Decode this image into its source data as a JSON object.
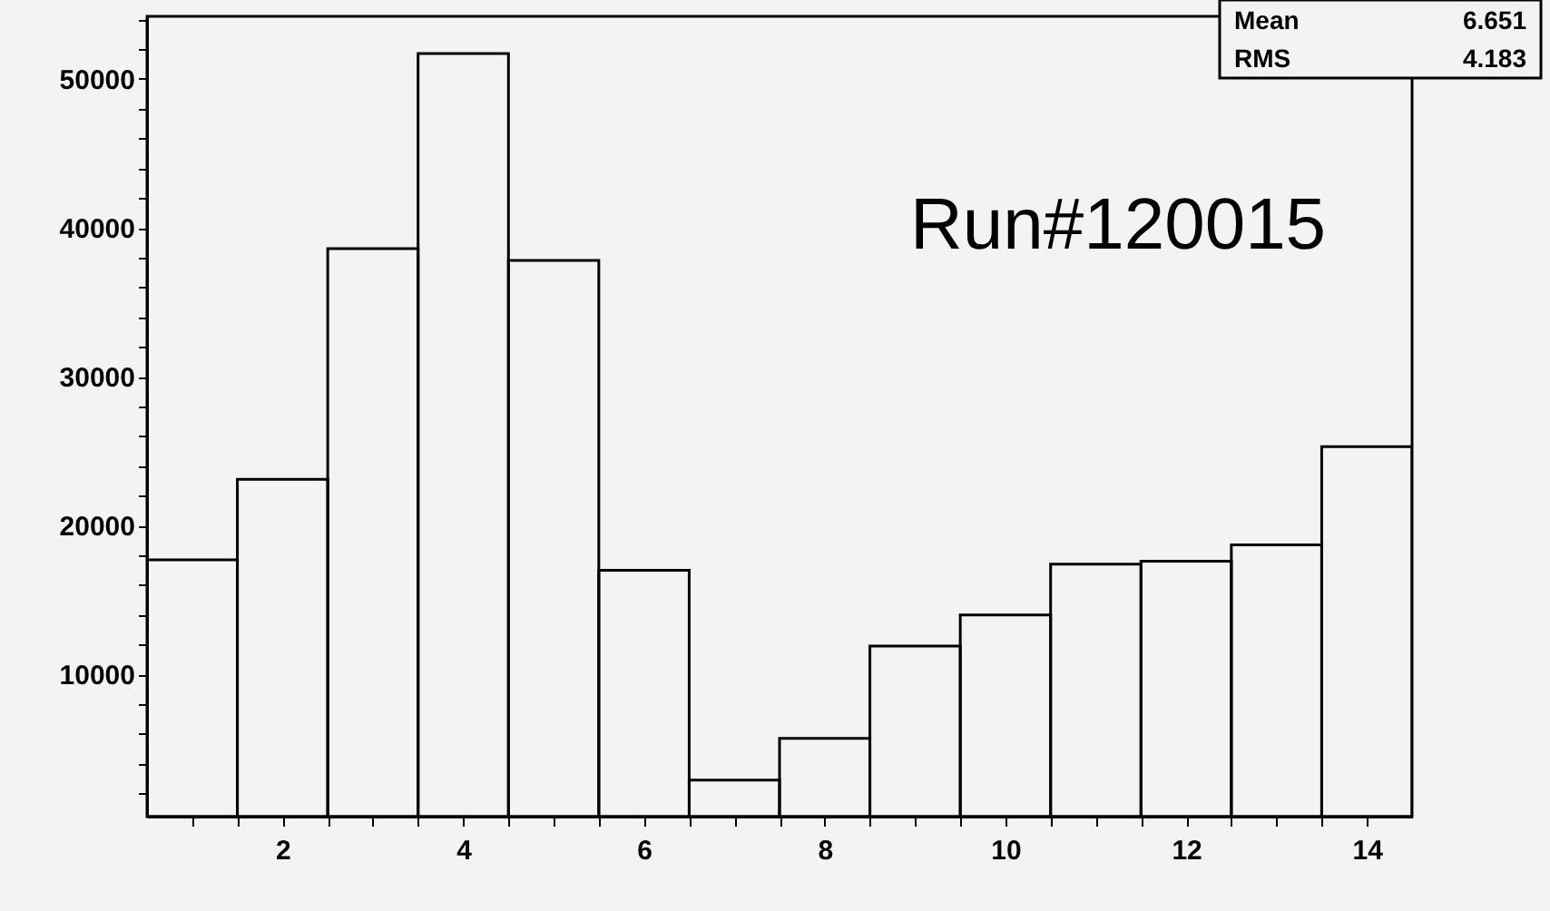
{
  "chart_data": {
    "type": "histogram",
    "bins": [
      0.5,
      1.5,
      2.5,
      3.5,
      4.5,
      5.5,
      6.5,
      7.5,
      8.5,
      9.5,
      10.5,
      11.5,
      12.5,
      13.5,
      14.5
    ],
    "values": [
      17700,
      23100,
      38600,
      51700,
      37800,
      17000,
      2900,
      5700,
      11900,
      14000,
      17400,
      17600,
      18700,
      25300
    ],
    "color": "#000000",
    "xlim": [
      0.5,
      14.5
    ],
    "ylim": [
      450,
      54200
    ],
    "xticks": [
      {
        "value": 1,
        "label": null
      },
      {
        "value": 1.5,
        "label": null
      },
      2,
      {
        "value": 2.5,
        "label": null
      },
      {
        "value": 3,
        "label": null
      },
      {
        "value": 3.5,
        "label": null
      },
      4,
      {
        "value": 4.5,
        "label": null
      },
      {
        "value": 5,
        "label": null
      },
      {
        "value": 5.5,
        "label": null
      },
      6,
      {
        "value": 6.5,
        "label": null
      },
      {
        "value": 7,
        "label": null
      },
      {
        "value": 7.5,
        "label": null
      },
      8,
      {
        "value": 8.5,
        "label": null
      },
      {
        "value": 9,
        "label": null
      },
      {
        "value": 9.5,
        "label": null
      },
      10,
      {
        "value": 10.5,
        "label": null
      },
      {
        "value": 11,
        "label": null
      },
      {
        "value": 11.5,
        "label": null
      },
      12,
      {
        "value": 12.5,
        "label": null
      },
      {
        "value": 13,
        "label": null
      },
      {
        "value": 13.5,
        "label": null
      },
      14
    ],
    "yticks": [
      {
        "value": 2000,
        "label": null
      },
      {
        "value": 4000,
        "label": null
      },
      {
        "value": 6000,
        "label": null
      },
      {
        "value": 8000,
        "label": null
      },
      10000,
      {
        "value": 12000,
        "label": null
      },
      {
        "value": 14000,
        "label": null
      },
      {
        "value": 16000,
        "label": null
      },
      {
        "value": 18000,
        "label": null
      },
      20000,
      {
        "value": 22000,
        "label": null
      },
      {
        "value": 24000,
        "label": null
      },
      {
        "value": 26000,
        "label": null
      },
      {
        "value": 28000,
        "label": null
      },
      30000,
      {
        "value": 32000,
        "label": null
      },
      {
        "value": 34000,
        "label": null
      },
      {
        "value": 36000,
        "label": null
      },
      {
        "value": 38000,
        "label": null
      },
      40000,
      {
        "value": 42000,
        "label": null
      },
      {
        "value": 44000,
        "label": null
      },
      {
        "value": 46000,
        "label": null
      },
      {
        "value": 48000,
        "label": null
      },
      50000,
      {
        "value": 52000,
        "label": null
      },
      {
        "value": 54000,
        "label": null
      }
    ],
    "grid": false,
    "annotations": [
      "Run#120015",
      "Mean 6.651",
      "RMS 4.183"
    ]
  }
}
